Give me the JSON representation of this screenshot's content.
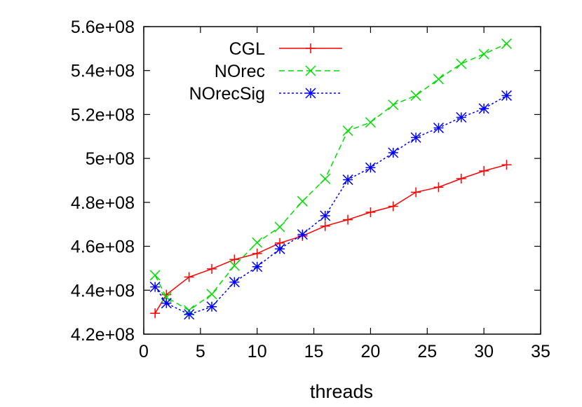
{
  "chart_data": {
    "type": "line",
    "title": "",
    "xlabel": "threads",
    "ylabel": "",
    "xlim": [
      0,
      35
    ],
    "ylim": [
      420000000,
      560000000
    ],
    "xticks": [
      0,
      5,
      10,
      15,
      20,
      25,
      30,
      35
    ],
    "xtick_labels": [
      "0",
      "5",
      "10",
      "15",
      "20",
      "25",
      "30",
      "35"
    ],
    "yticks": [
      420000000,
      440000000,
      460000000,
      480000000,
      500000000,
      520000000,
      540000000,
      560000000
    ],
    "ytick_labels": [
      "4.2e+08",
      "4.4e+08",
      "4.6e+08",
      "4.8e+08",
      "5e+08",
      "5.2e+08",
      "5.4e+08",
      "5.6e+08"
    ],
    "grid": false,
    "legend_position": "top-left",
    "series": [
      {
        "name": "CGL",
        "color": "#ff0000",
        "marker": "plus",
        "dash": "solid",
        "x": [
          1,
          2,
          4,
          6,
          8,
          10,
          12,
          14,
          16,
          18,
          20,
          22,
          24,
          26,
          28,
          30,
          32
        ],
        "y": [
          429500000,
          438000000,
          446000000,
          449700000,
          454000000,
          456700000,
          461500000,
          464700000,
          469200000,
          472100000,
          475500000,
          478200000,
          484600000,
          486900000,
          490800000,
          494300000,
          497100000
        ]
      },
      {
        "name": "NOrec",
        "color": "#00dd00",
        "marker": "x",
        "dash": "dashed",
        "x": [
          1,
          2,
          4,
          6,
          8,
          10,
          12,
          14,
          16,
          18,
          20,
          22,
          24,
          26,
          28,
          30,
          32
        ],
        "y": [
          446800000,
          436800000,
          430800000,
          438200000,
          451200000,
          461700000,
          468800000,
          480500000,
          490700000,
          512600000,
          516400000,
          524400000,
          528600000,
          536100000,
          543100000,
          547500000,
          552200000
        ]
      },
      {
        "name": "NOrecSig",
        "color": "#0000ff",
        "marker": "asterisk",
        "dash": "dotted",
        "x": [
          1,
          2,
          4,
          6,
          8,
          10,
          12,
          14,
          16,
          18,
          20,
          22,
          24,
          26,
          28,
          30,
          32
        ],
        "y": [
          441500000,
          434100000,
          429000000,
          432500000,
          443700000,
          450700000,
          458800000,
          465400000,
          473900000,
          490300000,
          495800000,
          502600000,
          509500000,
          513900000,
          518700000,
          522700000,
          528600000
        ]
      }
    ]
  }
}
